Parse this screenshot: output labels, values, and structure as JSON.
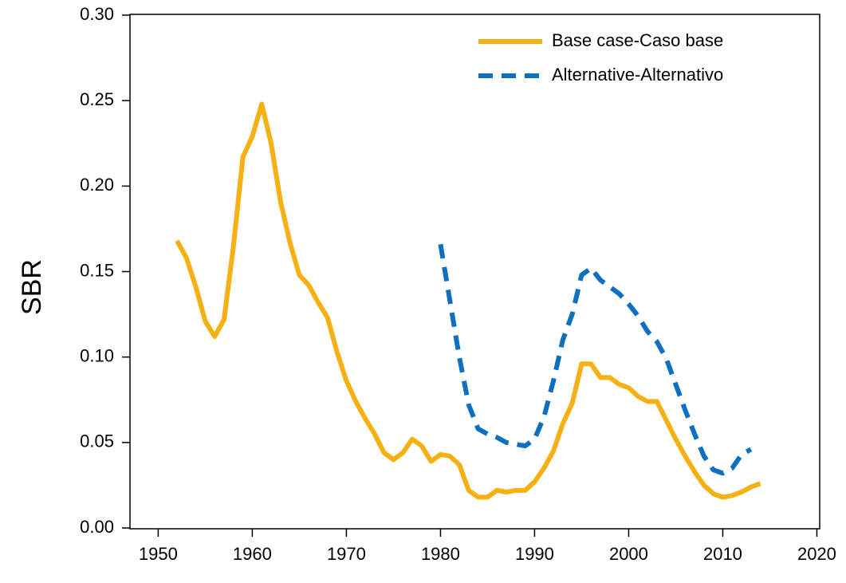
{
  "chart_data": {
    "type": "line",
    "ylabel": "SBR",
    "xlim": [
      1947,
      2020.3
    ],
    "ylim": [
      0,
      0.3
    ],
    "xticks": [
      1950,
      1960,
      1970,
      1980,
      1990,
      2000,
      2010,
      2020
    ],
    "yticks": [
      {
        "value": 0,
        "label": "0.00"
      },
      {
        "value": 0.05,
        "label": "0.05"
      },
      {
        "value": 0.1,
        "label": "0.10"
      },
      {
        "value": 0.15,
        "label": "0.15"
      },
      {
        "value": 0.2,
        "label": "0.20"
      },
      {
        "value": 0.25,
        "label": "0.25"
      },
      {
        "value": 0.3,
        "label": "0.30"
      }
    ],
    "legend": "top-right",
    "series": [
      {
        "name": "Base case-Caso base",
        "color": "#f5b014",
        "dash": "solid",
        "x": [
          1952,
          1953,
          1954,
          1955,
          1956,
          1957,
          1958,
          1959,
          1960,
          1961,
          1962,
          1963,
          1964,
          1965,
          1966,
          1967,
          1968,
          1969,
          1970,
          1971,
          1972,
          1973,
          1974,
          1975,
          1976,
          1977,
          1978,
          1979,
          1980,
          1981,
          1982,
          1983,
          1984,
          1985,
          1986,
          1987,
          1988,
          1989,
          1990,
          1991,
          1992,
          1993,
          1994,
          1995,
          1996,
          1997,
          1998,
          1999,
          2000,
          2001,
          2002,
          2003,
          2004,
          2005,
          2006,
          2007,
          2008,
          2009,
          2010,
          2011,
          2012,
          2013,
          2014
        ],
        "values": [
          0.168,
          0.158,
          0.141,
          0.121,
          0.112,
          0.122,
          0.165,
          0.217,
          0.229,
          0.248,
          0.225,
          0.191,
          0.167,
          0.148,
          0.142,
          0.132,
          0.123,
          0.103,
          0.086,
          0.074,
          0.064,
          0.055,
          0.044,
          0.04,
          0.044,
          0.052,
          0.048,
          0.039,
          0.043,
          0.042,
          0.037,
          0.022,
          0.018,
          0.018,
          0.022,
          0.021,
          0.022,
          0.022,
          0.027,
          0.035,
          0.045,
          0.061,
          0.073,
          0.096,
          0.096,
          0.088,
          0.088,
          0.084,
          0.082,
          0.077,
          0.074,
          0.074,
          0.063,
          0.052,
          0.042,
          0.033,
          0.025,
          0.02,
          0.018,
          0.019,
          0.021,
          0.024,
          0.026
        ]
      },
      {
        "name": "Alternative-Alternativo",
        "color": "#1070c0",
        "dash": "dashed",
        "x": [
          1980,
          1981,
          1982,
          1983,
          1984,
          1985,
          1986,
          1987,
          1988,
          1989,
          1990,
          1991,
          1992,
          1993,
          1994,
          1995,
          1996,
          1997,
          1998,
          1999,
          2000,
          2001,
          2002,
          2003,
          2004,
          2005,
          2006,
          2007,
          2008,
          2009,
          2010,
          2011,
          2012,
          2013
        ],
        "values": [
          0.166,
          0.133,
          0.1,
          0.072,
          0.058,
          0.055,
          0.053,
          0.05,
          0.049,
          0.048,
          0.052,
          0.065,
          0.086,
          0.11,
          0.125,
          0.148,
          0.152,
          0.145,
          0.141,
          0.137,
          0.131,
          0.124,
          0.115,
          0.109,
          0.099,
          0.084,
          0.069,
          0.055,
          0.042,
          0.034,
          0.032,
          0.035,
          0.043,
          0.046
        ]
      }
    ]
  }
}
